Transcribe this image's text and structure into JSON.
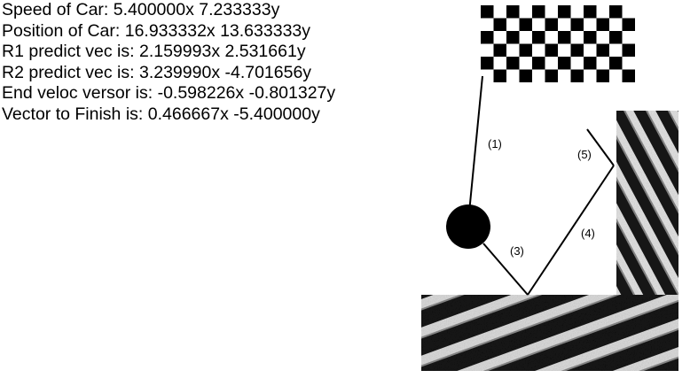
{
  "hud": [
    {
      "label": "Speed of Car:",
      "value": "5.400000x 7.233333y"
    },
    {
      "label": "Position of Car:",
      "value": "16.933332x 13.633333y"
    },
    {
      "label": "R1 predict vec is:",
      "value": "2.159993x 2.531661y"
    },
    {
      "label": "R2 predict vec is:",
      "value": "3.239990x -4.701656y"
    },
    {
      "label": "End veloc versor is:",
      "value": "-0.598226x -0.801327y"
    },
    {
      "label": "Vector to Finish is:",
      "value": "0.466667x -5.400000y"
    }
  ],
  "path_segments": [
    {
      "label": "(1)"
    },
    {
      "label": "(3)"
    },
    {
      "label": "(4)"
    },
    {
      "label": "(5)"
    }
  ],
  "scene": {
    "finish_flag": "checkered-finish-flag",
    "car": "car-ball",
    "walls": [
      "right-wall-striped",
      "floor-striped"
    ],
    "colors": {
      "line": "#000000",
      "car": "#000000",
      "wall_dark": "#161616",
      "wall_light": "#e8e8e8",
      "flag_dark": "#000000",
      "flag_light": "#ffffff"
    }
  }
}
